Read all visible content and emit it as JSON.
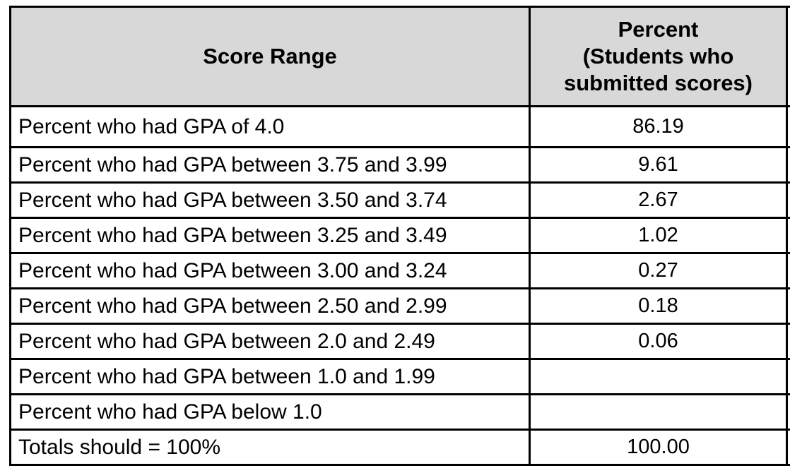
{
  "table": {
    "columns": {
      "score_range_header": "Score Range",
      "percent_header": "Percent\n(Students who\nsubmitted scores)"
    },
    "rows": [
      {
        "label": "Percent who had GPA of 4.0",
        "value": "86.19"
      },
      {
        "label": "Percent who had GPA between 3.75 and 3.99",
        "value": "9.61"
      },
      {
        "label": "Percent who had GPA between 3.50 and 3.74",
        "value": "2.67"
      },
      {
        "label": "Percent who had GPA between 3.25 and 3.49",
        "value": "1.02"
      },
      {
        "label": "Percent who had GPA between 3.00 and 3.24",
        "value": "0.27"
      },
      {
        "label": "Percent who had GPA between 2.50 and 2.99",
        "value": "0.18"
      },
      {
        "label": "Percent who had GPA between 2.0 and 2.49",
        "value": "0.06"
      },
      {
        "label": "Percent who had GPA between 1.0 and 1.99",
        "value": ""
      },
      {
        "label": "Percent who had GPA below 1.0",
        "value": ""
      },
      {
        "label": "Totals should = 100%",
        "value": "100.00"
      }
    ],
    "colors": {
      "header_bg": "#d8d8d8",
      "border": "#000000",
      "text": "#000000",
      "page_bg": "#ffffff"
    }
  }
}
